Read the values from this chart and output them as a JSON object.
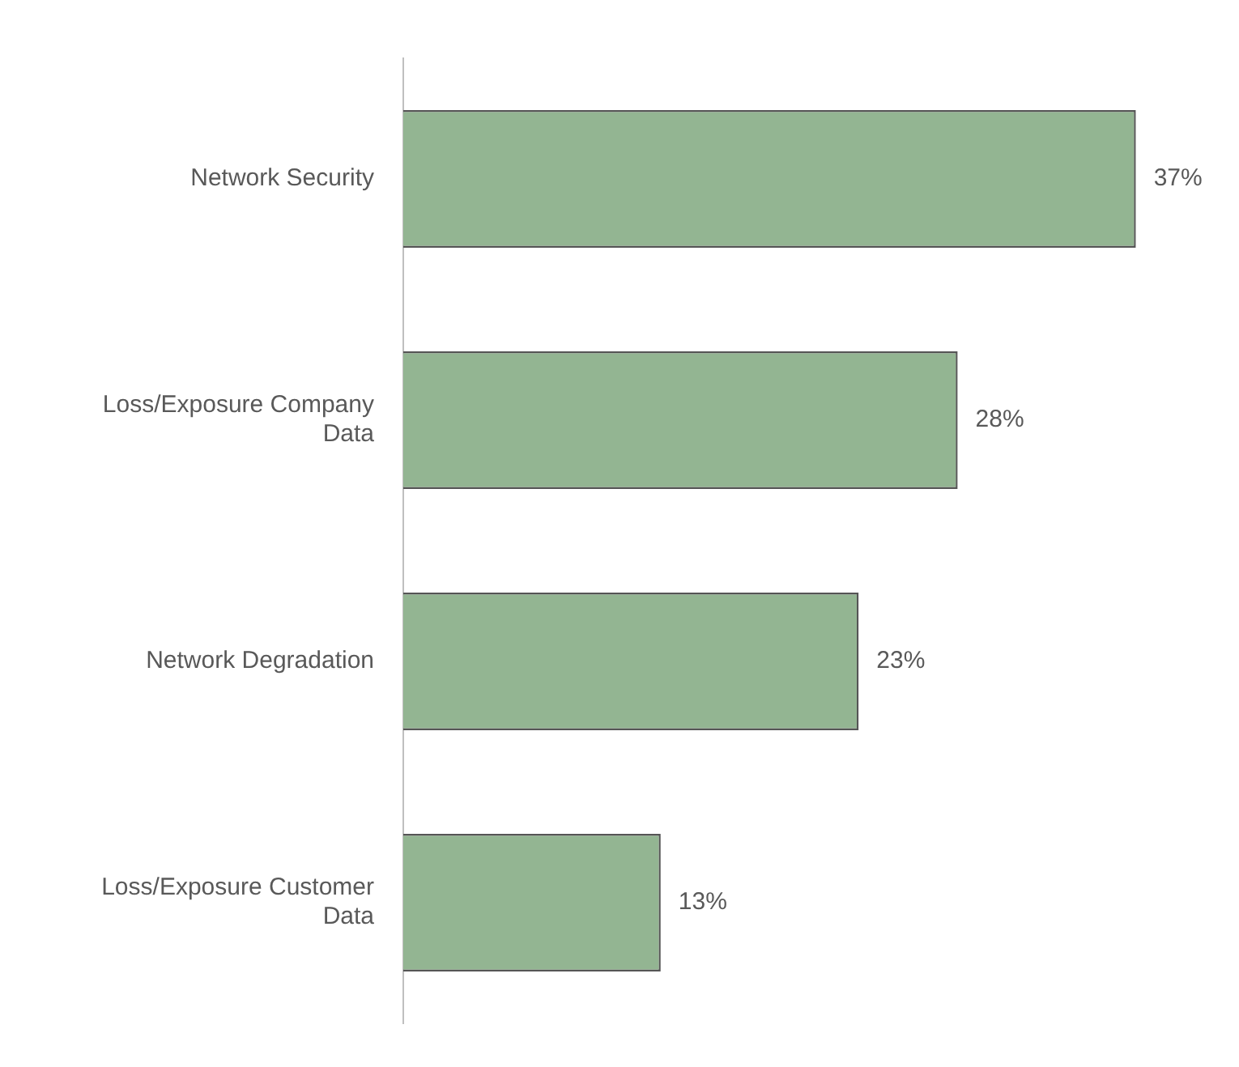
{
  "chart_data": {
    "type": "bar",
    "orientation": "horizontal",
    "categories": [
      "Network Security",
      "Loss/Exposure Company Data",
      "Network Degradation",
      "Loss/Exposure Customer Data"
    ],
    "values": [
      37,
      28,
      23,
      13
    ],
    "value_labels": [
      "37%",
      "28%",
      "23%",
      "13%"
    ],
    "color": "#93b592",
    "tick_labels": "y"
  }
}
